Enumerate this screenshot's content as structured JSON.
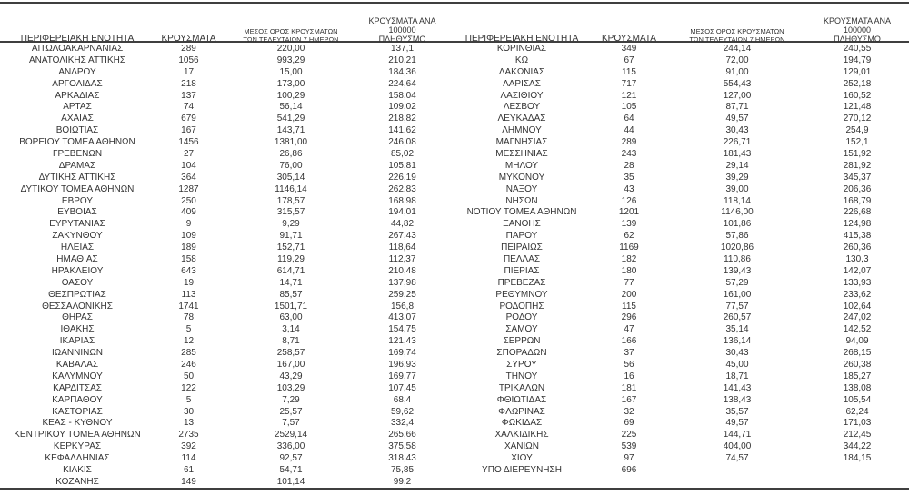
{
  "colors": {
    "background": "#ffffff",
    "text": "#333333",
    "rule": "#3f3f3f"
  },
  "headers": {
    "region": "ΠΕΡΙΦΕΡΕΙΑΚΗ ΕΝΟΤΗΤΑ",
    "cases": "ΚΡΟΥΣΜΑΤΑ",
    "avg7_line1": "ΜΕΣΟΣ ΟΡΟΣ ΚΡΟΥΣΜΑΤΩΝ",
    "avg7_line2": "ΤΩΝ ΤΕΛΕΥΤΑΙΩΝ 7 ΗΜΕΡΩΝ",
    "per100k_line1": "ΚΡΟΥΣΜΑΤΑ ΑΝΑ 100000",
    "per100k_line2": "ΠΛΗΘΥΣΜΟ"
  },
  "left_table": {
    "rows": [
      [
        "ΑΙΤΩΛΟΑΚΑΡΝΑΝΙΑΣ",
        "289",
        "220,00",
        "137,1"
      ],
      [
        "ΑΝΑΤΟΛΙΚΗΣ ΑΤΤΙΚΗΣ",
        "1056",
        "993,29",
        "210,21"
      ],
      [
        "ΑΝΔΡΟΥ",
        "17",
        "15,00",
        "184,36"
      ],
      [
        "ΑΡΓΟΛΙΔΑΣ",
        "218",
        "173,00",
        "224,64"
      ],
      [
        "ΑΡΚΑΔΙΑΣ",
        "137",
        "100,29",
        "158,04"
      ],
      [
        "ΑΡΤΑΣ",
        "74",
        "56,14",
        "109,02"
      ],
      [
        "ΑΧΑΪΑΣ",
        "679",
        "541,29",
        "218,82"
      ],
      [
        "ΒΟΙΩΤΙΑΣ",
        "167",
        "143,71",
        "141,62"
      ],
      [
        "ΒΟΡΕΙΟΥ ΤΟΜΕΑ ΑΘΗΝΩΝ",
        "1456",
        "1381,00",
        "246,08"
      ],
      [
        "ΓΡΕΒΕΝΩΝ",
        "27",
        "26,86",
        "85,02"
      ],
      [
        "ΔΡΑΜΑΣ",
        "104",
        "76,00",
        "105,81"
      ],
      [
        "ΔΥΤΙΚΗΣ ΑΤΤΙΚΗΣ",
        "364",
        "305,14",
        "226,19"
      ],
      [
        "ΔΥΤΙΚΟΥ ΤΟΜΕΑ ΑΘΗΝΩΝ",
        "1287",
        "1146,14",
        "262,83"
      ],
      [
        "ΕΒΡΟΥ",
        "250",
        "178,57",
        "168,98"
      ],
      [
        "ΕΥΒΟΙΑΣ",
        "409",
        "315,57",
        "194,01"
      ],
      [
        "ΕΥΡΥΤΑΝΙΑΣ",
        "9",
        "9,29",
        "44,82"
      ],
      [
        "ΖΑΚΥΝΘΟΥ",
        "109",
        "91,71",
        "267,43"
      ],
      [
        "ΗΛΕΙΑΣ",
        "189",
        "152,71",
        "118,64"
      ],
      [
        "ΗΜΑΘΙΑΣ",
        "158",
        "119,29",
        "112,37"
      ],
      [
        "ΗΡΑΚΛΕΙΟΥ",
        "643",
        "614,71",
        "210,48"
      ],
      [
        "ΘΑΣΟΥ",
        "19",
        "14,71",
        "137,98"
      ],
      [
        "ΘΕΣΠΡΩΤΙΑΣ",
        "113",
        "85,57",
        "259,25"
      ],
      [
        "ΘΕΣΣΑΛΟΝΙΚΗΣ",
        "1741",
        "1501,71",
        "156,8"
      ],
      [
        "ΘΗΡΑΣ",
        "78",
        "63,00",
        "413,07"
      ],
      [
        "ΙΘΑΚΗΣ",
        "5",
        "3,14",
        "154,75"
      ],
      [
        "ΙΚΑΡΙΑΣ",
        "12",
        "8,71",
        "121,43"
      ],
      [
        "ΙΩΑΝΝΙΝΩΝ",
        "285",
        "258,57",
        "169,74"
      ],
      [
        "ΚΑΒΑΛΑΣ",
        "246",
        "167,00",
        "196,93"
      ],
      [
        "ΚΑΛΥΜΝΟΥ",
        "50",
        "43,29",
        "169,77"
      ],
      [
        "ΚΑΡΔΙΤΣΑΣ",
        "122",
        "103,29",
        "107,45"
      ],
      [
        "ΚΑΡΠΑΘΟΥ",
        "5",
        "7,29",
        "68,4"
      ],
      [
        "ΚΑΣΤΟΡΙΑΣ",
        "30",
        "25,57",
        "59,62"
      ],
      [
        "ΚΕΑΣ - ΚΥΘΝΟΥ",
        "13",
        "7,57",
        "332,4"
      ],
      [
        "ΚΕΝΤΡΙΚΟΥ ΤΟΜΕΑ ΑΘΗΝΩΝ",
        "2735",
        "2529,14",
        "265,66"
      ],
      [
        "ΚΕΡΚΥΡΑΣ",
        "392",
        "336,00",
        "375,58"
      ],
      [
        "ΚΕΦΑΛΛΗΝΙΑΣ",
        "114",
        "92,57",
        "318,43"
      ],
      [
        "ΚΙΛΚΙΣ",
        "61",
        "54,71",
        "75,85"
      ],
      [
        "ΚΟΖΑΝΗΣ",
        "149",
        "101,14",
        "99,2"
      ]
    ]
  },
  "right_table": {
    "rows": [
      [
        "ΚΟΡΙΝΘΙΑΣ",
        "349",
        "244,14",
        "240,55"
      ],
      [
        "ΚΩ",
        "67",
        "72,00",
        "194,79"
      ],
      [
        "ΛΑΚΩΝΙΑΣ",
        "115",
        "91,00",
        "129,01"
      ],
      [
        "ΛΑΡΙΣΑΣ",
        "717",
        "554,43",
        "252,18"
      ],
      [
        "ΛΑΣΙΘΙΟΥ",
        "121",
        "127,00",
        "160,52"
      ],
      [
        "ΛΕΣΒΟΥ",
        "105",
        "87,71",
        "121,48"
      ],
      [
        "ΛΕΥΚΑΔΑΣ",
        "64",
        "49,57",
        "270,12"
      ],
      [
        "ΛΗΜΝΟΥ",
        "44",
        "30,43",
        "254,9"
      ],
      [
        "ΜΑΓΝΗΣΙΑΣ",
        "289",
        "226,71",
        "152,1"
      ],
      [
        "ΜΕΣΣΗΝΙΑΣ",
        "243",
        "181,43",
        "151,92"
      ],
      [
        "ΜΗΛΟΥ",
        "28",
        "29,14",
        "281,92"
      ],
      [
        "ΜΥΚΟΝΟΥ",
        "35",
        "39,29",
        "345,37"
      ],
      [
        "ΝΑΞΟΥ",
        "43",
        "39,00",
        "206,36"
      ],
      [
        "ΝΗΣΩΝ",
        "126",
        "118,14",
        "168,79"
      ],
      [
        "ΝΟΤΙΟΥ ΤΟΜΕΑ ΑΘΗΝΩΝ",
        "1201",
        "1146,00",
        "226,68"
      ],
      [
        "ΞΑΝΘΗΣ",
        "139",
        "101,86",
        "124,98"
      ],
      [
        "ΠΑΡΟΥ",
        "62",
        "57,86",
        "415,38"
      ],
      [
        "ΠΕΙΡΑΙΩΣ",
        "1169",
        "1020,86",
        "260,36"
      ],
      [
        "ΠΕΛΛΑΣ",
        "182",
        "110,86",
        "130,3"
      ],
      [
        "ΠΙΕΡΙΑΣ",
        "180",
        "139,43",
        "142,07"
      ],
      [
        "ΠΡΕΒΕΖΑΣ",
        "77",
        "57,29",
        "133,93"
      ],
      [
        "ΡΕΘΥΜΝΟΥ",
        "200",
        "161,00",
        "233,62"
      ],
      [
        "ΡΟΔΟΠΗΣ",
        "115",
        "77,57",
        "102,64"
      ],
      [
        "ΡΟΔΟΥ",
        "296",
        "260,57",
        "247,02"
      ],
      [
        "ΣΑΜΟΥ",
        "47",
        "35,14",
        "142,52"
      ],
      [
        "ΣΕΡΡΩΝ",
        "166",
        "136,14",
        "94,09"
      ],
      [
        "ΣΠΟΡΑΔΩΝ",
        "37",
        "30,43",
        "268,15"
      ],
      [
        "ΣΥΡΟΥ",
        "56",
        "45,00",
        "260,38"
      ],
      [
        "ΤΗΝΟΥ",
        "16",
        "18,71",
        "185,27"
      ],
      [
        "ΤΡΙΚΑΛΩΝ",
        "181",
        "141,43",
        "138,08"
      ],
      [
        "ΦΘΙΩΤΙΔΑΣ",
        "167",
        "138,43",
        "105,54"
      ],
      [
        "ΦΛΩΡΙΝΑΣ",
        "32",
        "35,57",
        "62,24"
      ],
      [
        "ΦΩΚΙΔΑΣ",
        "69",
        "49,57",
        "171,03"
      ],
      [
        "ΧΑΛΚΙΔΙΚΗΣ",
        "225",
        "144,71",
        "212,45"
      ],
      [
        "ΧΑΝΙΩΝ",
        "539",
        "404,00",
        "344,22"
      ],
      [
        "ΧΙΟΥ",
        "97",
        "74,57",
        "184,15"
      ],
      [
        "ΥΠΟ ΔΙΕΡΕΥΝΗΣΗ",
        "696",
        "",
        ""
      ]
    ]
  }
}
